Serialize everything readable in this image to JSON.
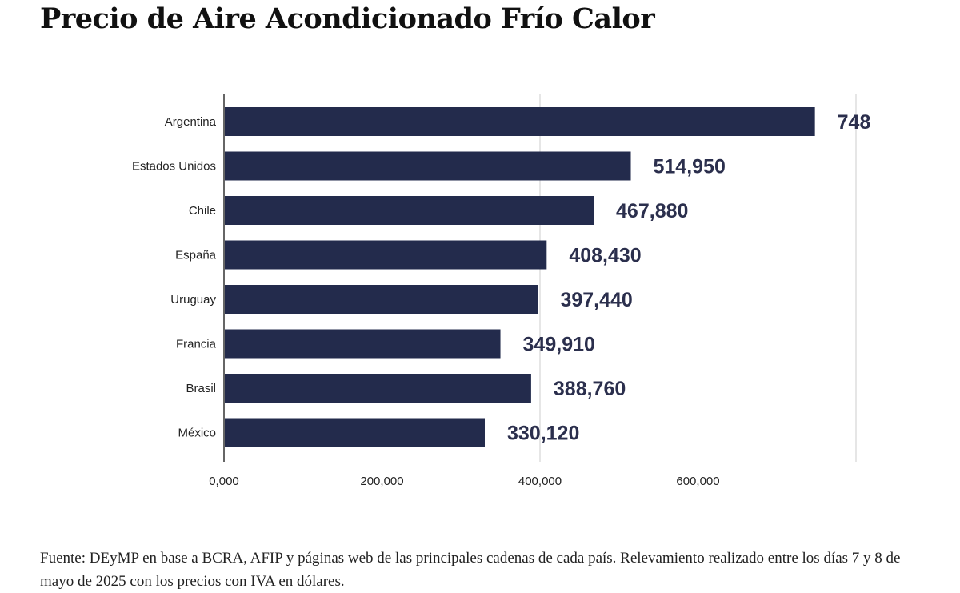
{
  "title": "Precio de Aire Acondicionado Frío Calor",
  "source": "Fuente: DEyMP en base a BCRA, AFIP y páginas web de las principales cadenas de cada país. Relevamiento realizado entre los días 7 y 8 de mayo de 2025 con los precios con IVA en dólares.",
  "colors": {
    "bar": "#232b4c",
    "grid": "#cccccc",
    "axis": "#333333",
    "label": "#2b2f4d"
  },
  "chart_data": {
    "type": "bar",
    "orientation": "horizontal",
    "categories": [
      "Argentina",
      "Estados Unidos",
      "Chile",
      "España",
      "Uruguay",
      "Francia",
      "Brasil",
      "México"
    ],
    "values": [
      748,
      514.95,
      467.88,
      408.43,
      397.44,
      349.91,
      388.76,
      330.12
    ],
    "data_labels": [
      "748",
      "514,950",
      "467,880",
      "408,430",
      "397,440",
      "349,910",
      "388,760",
      "330,120"
    ],
    "x_ticks": [
      0,
      200,
      400,
      600
    ],
    "x_tick_labels": [
      "0,000",
      "200,000",
      "400,000",
      "600,000"
    ],
    "xlim": [
      0,
      800
    ],
    "grid": true,
    "legend": "none"
  }
}
